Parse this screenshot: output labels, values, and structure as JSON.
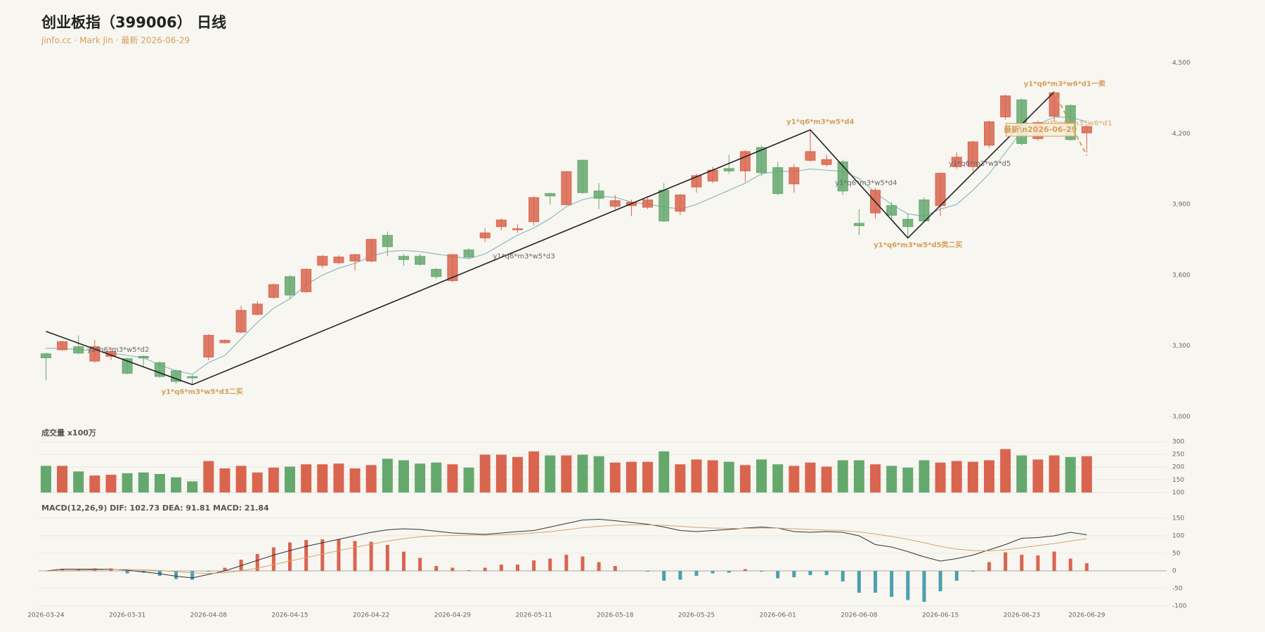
{
  "chart_data": [
    {
      "type": "candlestick",
      "title": "创业板指（399006） 日线",
      "subtitle": "jinfo.cc · Mark Jin · 最新 2026-06-29",
      "categories": [
        "2026-03-24",
        null,
        null,
        null,
        null,
        "2026-03-31",
        null,
        null,
        null,
        null,
        "2026-04-08",
        null,
        null,
        null,
        null,
        "2026-04-15",
        null,
        null,
        null,
        null,
        "2026-04-22",
        null,
        null,
        null,
        null,
        "2026-04-29",
        null,
        null,
        null,
        null,
        "2026-05-11",
        null,
        null,
        null,
        null,
        "2026-05-18",
        null,
        null,
        null,
        null,
        "2026-05-25",
        null,
        null,
        null,
        null,
        "2026-06-01",
        null,
        null,
        null,
        null,
        "2026-06-08",
        null,
        null,
        null,
        null,
        "2026-06-15",
        null,
        null,
        null,
        null,
        "2026-06-23",
        null,
        null,
        null,
        "2026-06-29"
      ],
      "open": [
        3267,
        3284,
        3297,
        3236,
        3256,
        3246,
        3256,
        3229,
        3195,
        3170,
        3253,
        3314,
        3359,
        3434,
        3506,
        3594,
        3530,
        3642,
        3653,
        3660,
        3660,
        3769,
        3680,
        3680,
        3625,
        3577,
        3707,
        3758,
        3806,
        3793,
        3827,
        3946,
        3899,
        4087,
        3957,
        3892,
        3895,
        3888,
        3960,
        3871,
        3974,
        3999,
        4052,
        4042,
        4141,
        4056,
        3987,
        4087,
        4069,
        4080,
        3820,
        3864,
        3895,
        3837,
        3919,
        3895,
        4060,
        4060,
        4151,
        4271,
        4343,
        4179,
        4274,
        4319,
        4203
      ],
      "high": [
        3270,
        3322,
        3345,
        3325,
        3290,
        3250,
        3260,
        3235,
        3200,
        3178,
        3350,
        3328,
        3470,
        3490,
        3565,
        3600,
        3630,
        3685,
        3685,
        3690,
        3755,
        3785,
        3690,
        3690,
        3630,
        3690,
        3715,
        3800,
        3840,
        3815,
        3935,
        3950,
        4040,
        4090,
        3990,
        3940,
        3920,
        3935,
        3990,
        3945,
        4030,
        4060,
        4110,
        4130,
        4150,
        4080,
        4070,
        4216,
        4110,
        4090,
        3880,
        3970,
        3910,
        3860,
        3930,
        4035,
        4120,
        4170,
        4255,
        4365,
        4350,
        4255,
        4377,
        4325,
        4240
      ],
      "low": [
        3154,
        3280,
        3265,
        3229,
        3240,
        3180,
        3215,
        3165,
        3140,
        3136,
        3240,
        3310,
        3355,
        3430,
        3500,
        3500,
        3525,
        3630,
        3645,
        3620,
        3655,
        3680,
        3640,
        3640,
        3585,
        3570,
        3670,
        3740,
        3790,
        3780,
        3810,
        3900,
        3895,
        3945,
        3880,
        3880,
        3850,
        3880,
        3825,
        3855,
        3950,
        3990,
        4030,
        3995,
        4020,
        3940,
        3950,
        4080,
        4060,
        3940,
        3770,
        3840,
        3840,
        3758,
        3825,
        3850,
        4050,
        4040,
        4140,
        4260,
        4150,
        4170,
        4250,
        4170,
        4120
      ],
      "close": [
        3250,
        3318,
        3270,
        3297,
        3277,
        3184,
        3249,
        3171,
        3150,
        3165,
        3345,
        3324,
        3451,
        3478,
        3560,
        3516,
        3625,
        3680,
        3677,
        3687,
        3752,
        3721,
        3666,
        3646,
        3594,
        3687,
        3677,
        3779,
        3834,
        3797,
        3929,
        3936,
        4039,
        3950,
        3926,
        3916,
        3909,
        3919,
        3830,
        3940,
        4022,
        4045,
        4042,
        4124,
        4035,
        3946,
        4056,
        4124,
        4090,
        3957,
        3810,
        3960,
        3854,
        3806,
        3830,
        4032,
        4100,
        4165,
        4250,
        4360,
        4158,
        4247,
        4373,
        4175,
        4230
      ],
      "up_color": "#d9654f",
      "down_color": "#65a86e",
      "ma": {
        "color": "#7fb7bd",
        "values": [
          3290,
          3290,
          3285,
          3280,
          3270,
          3260,
          3250,
          3220,
          3195,
          3180,
          3230,
          3260,
          3330,
          3400,
          3460,
          3500,
          3560,
          3600,
          3630,
          3650,
          3680,
          3700,
          3705,
          3700,
          3690,
          3680,
          3670,
          3690,
          3730,
          3770,
          3800,
          3840,
          3890,
          3920,
          3935,
          3930,
          3910,
          3900,
          3890,
          3880,
          3900,
          3930,
          3960,
          3990,
          4030,
          4040,
          4040,
          4050,
          4045,
          4040,
          4010,
          3950,
          3900,
          3860,
          3850,
          3880,
          3900,
          3960,
          4030,
          4120,
          4210,
          4240,
          4270,
          4270,
          4250
        ]
      },
      "zigzag": {
        "color": "#222222",
        "x": [
          0,
          9,
          47,
          53,
          62
        ],
        "values": [
          3362,
          3136,
          4216,
          3758,
          4377
        ]
      },
      "signal": {
        "color": "#d4a05a",
        "x": [
          62,
          64
        ],
        "values": [
          4377,
          4107
        ]
      },
      "annotations": [
        "y1*q6*m3*w5*d2",
        "y1*q6*m3*w5*d3二买",
        "y1*q6*m3*w5*d3",
        "y1*q6*m3*w5*d4",
        "y1*q6*m3*w5*d4",
        "y1*q6*m3*w5*d5类二买",
        "y1*q6*m3*w5*d5",
        "y1*q6*m3*w6*d1一卖",
        "y1*q6*m3*w6*d1"
      ],
      "latest_label": "最新\\n2026-06-29",
      "ylim": [
        3000,
        4500
      ],
      "yticks": [
        {
          "value": 3000,
          "label": "3,000"
        },
        {
          "value": 3300,
          "label": "3,300"
        },
        {
          "value": 3600,
          "label": "3,600"
        },
        {
          "value": 3900,
          "label": "3,900"
        },
        {
          "value": 4200,
          "label": "4,200"
        },
        {
          "value": 4500,
          "label": "4,500"
        }
      ]
    },
    {
      "type": "bar",
      "title": "成交量 x100万",
      "values": [
        205,
        205,
        183,
        167,
        170,
        176,
        179,
        173,
        160,
        144,
        224,
        195,
        205,
        179,
        198,
        202,
        211,
        211,
        214,
        195,
        208,
        233,
        227,
        214,
        218,
        211,
        198,
        249,
        249,
        240,
        262,
        246,
        246,
        249,
        243,
        218,
        221,
        221,
        262,
        211,
        230,
        227,
        221,
        208,
        230,
        211,
        205,
        218,
        202,
        227,
        227,
        211,
        205,
        198,
        227,
        218,
        224,
        221,
        227,
        271,
        246,
        230,
        246,
        240,
        243
      ],
      "ylim": [
        100,
        300
      ],
      "yticks": [
        100,
        150,
        200,
        250,
        300
      ],
      "grid": true
    },
    {
      "type": "macd",
      "title": "MACD(12,26,9) DIF: 102.73 DEA: 91.81 MACD: 21.84",
      "hist": {
        "pos_color": "#d9654f",
        "neg_color": "#4a9fb0",
        "values": [
          0,
          5,
          5,
          7,
          7,
          -7,
          -5,
          -14,
          -23,
          -25,
          -2,
          9,
          32,
          48,
          67,
          81,
          88,
          90,
          90,
          85,
          83,
          74,
          55,
          37,
          14,
          9,
          2,
          9,
          18,
          18,
          30,
          35,
          46,
          41,
          25,
          14,
          0,
          -2,
          -28,
          -25,
          -14,
          -7,
          -5,
          5,
          -2,
          -21,
          -18,
          -12,
          -12,
          -30,
          -62,
          -62,
          -74,
          -83,
          -88,
          -58,
          -28,
          -2,
          25,
          53,
          46,
          44,
          55,
          35,
          21.84
        ]
      },
      "dif": {
        "color": "#333333",
        "values": [
          0,
          5,
          5,
          5,
          5,
          2,
          -3,
          -8,
          -15,
          -20,
          -10,
          0,
          15,
          30,
          45,
          58,
          70,
          80,
          90,
          100,
          110,
          117,
          120,
          118,
          113,
          108,
          106,
          104,
          108,
          112,
          115,
          125,
          135,
          145,
          147,
          143,
          138,
          133,
          125,
          115,
          112,
          115,
          118,
          122,
          125,
          122,
          112,
          110,
          112,
          110,
          100,
          75,
          68,
          55,
          40,
          28,
          35,
          45,
          60,
          75,
          93,
          95,
          100,
          110,
          102.73
        ]
      },
      "dea": {
        "color": "#d4a56a",
        "values": [
          0,
          1,
          2,
          3,
          4,
          4,
          3,
          1,
          -2,
          -6,
          -7,
          -5,
          0,
          8,
          18,
          28,
          38,
          48,
          58,
          67,
          76,
          85,
          92,
          97,
          100,
          101,
          102,
          102,
          103,
          105,
          108,
          112,
          117,
          123,
          127,
          130,
          131,
          131,
          130,
          127,
          124,
          122,
          121,
          121,
          122,
          122,
          120,
          118,
          116,
          115,
          111,
          105,
          98,
          90,
          80,
          70,
          62,
          58,
          57,
          60,
          66,
          72,
          78,
          85,
          91.81
        ]
      },
      "ylim": [
        -100,
        150
      ],
      "yticks": [
        -100,
        -50,
        0,
        50,
        100,
        150
      ],
      "grid": true
    }
  ]
}
